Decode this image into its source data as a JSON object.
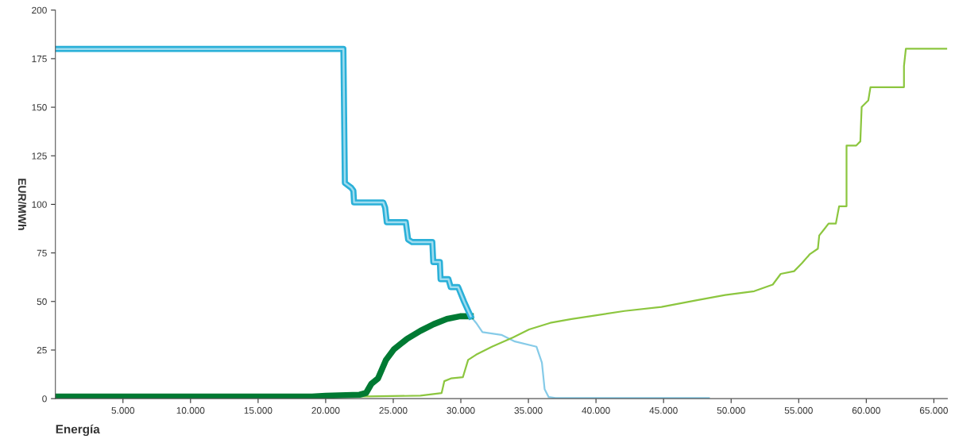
{
  "chart_data": {
    "type": "line",
    "xlabel": "Energía",
    "ylabel": "EUR/MWh",
    "xlim": [
      0,
      66000
    ],
    "ylim": [
      0,
      200
    ],
    "xticks": [
      {
        "value": 5000,
        "label": "5.000"
      },
      {
        "value": 10000,
        "label": "10.000"
      },
      {
        "value": 15000,
        "label": "15.000"
      },
      {
        "value": 20000,
        "label": "20.000"
      },
      {
        "value": 25000,
        "label": "25.000"
      },
      {
        "value": 30000,
        "label": "30.000"
      },
      {
        "value": 35000,
        "label": "35.000"
      },
      {
        "value": 40000,
        "label": "40.000"
      },
      {
        "value": 45000,
        "label": "45.000"
      },
      {
        "value": 50000,
        "label": "50.000"
      },
      {
        "value": 55000,
        "label": "55.000"
      },
      {
        "value": 60000,
        "label": "60.000"
      },
      {
        "value": 65000,
        "label": "65.000"
      }
    ],
    "yticks": [
      0,
      25,
      50,
      75,
      100,
      125,
      150,
      175,
      200
    ],
    "grid": false,
    "marker": "none",
    "line_style": "solid",
    "series": [
      {
        "color": "#86cbe8",
        "x": [
          30730,
          31130,
          31600,
          33000,
          34000,
          35600,
          36000,
          36200,
          36500,
          37000,
          48360
        ],
        "values": [
          42.4,
          39,
          34.2,
          32.8,
          29.4,
          26.7,
          18.5,
          4.9,
          0.8,
          0.3,
          0.3
        ]
      },
      {
        "color": "#8cc63f",
        "x": [
          0,
          20000,
          27010,
          28580,
          28780,
          29270,
          30150,
          30540,
          31130,
          32300,
          33870,
          35050,
          36620,
          38190,
          39560,
          42110,
          44850,
          47400,
          49560,
          51710,
          53080,
          53670,
          54660,
          55240,
          55830,
          56420,
          56520,
          56910,
          57210,
          57750,
          57990,
          58540,
          58540,
          59260,
          59560,
          59660,
          60150,
          60310,
          62790,
          62790,
          62930,
          65930
        ],
        "values": [
          0.8,
          0.8,
          1.5,
          2.9,
          9,
          10.4,
          11,
          19.9,
          22.6,
          26.7,
          31.5,
          35.6,
          39,
          41,
          42.4,
          45.1,
          47.2,
          50.6,
          53.3,
          55.3,
          58.7,
          64.2,
          65.6,
          69.7,
          74.4,
          77.2,
          84,
          87.4,
          90.1,
          90.1,
          99,
          99,
          130.3,
          130.3,
          132.4,
          150.1,
          153.5,
          160.3,
          160.3,
          171.2,
          180.1,
          180.1
        ]
      },
      {
        "color": "#007a33",
        "x": [
          0,
          19000,
          20000,
          22500,
          22990,
          23380,
          23870,
          24460,
          25050,
          26030,
          27010,
          27990,
          28970,
          29950,
          30730
        ],
        "values": [
          1,
          1,
          1.5,
          2,
          2.9,
          7.6,
          10.4,
          19.9,
          25.4,
          30.8,
          34.9,
          38.3,
          41,
          42.4,
          42.4
        ]
      },
      {
        "color": "#2ab0d8",
        "x": [
          0,
          21310,
          21420,
          21900,
          22050,
          22100,
          24260,
          24400,
          24520,
          25930,
          26100,
          26400,
          27890,
          27960,
          28450,
          28500,
          29080,
          29250,
          29800,
          30240,
          30730
        ],
        "values": [
          180,
          180,
          111,
          108.5,
          107,
          101,
          101,
          98.3,
          90.8,
          90.8,
          81.9,
          80.6,
          80.6,
          70.3,
          70.3,
          61.5,
          61.5,
          57.4,
          57.4,
          49.9,
          42.4
        ]
      }
    ]
  }
}
